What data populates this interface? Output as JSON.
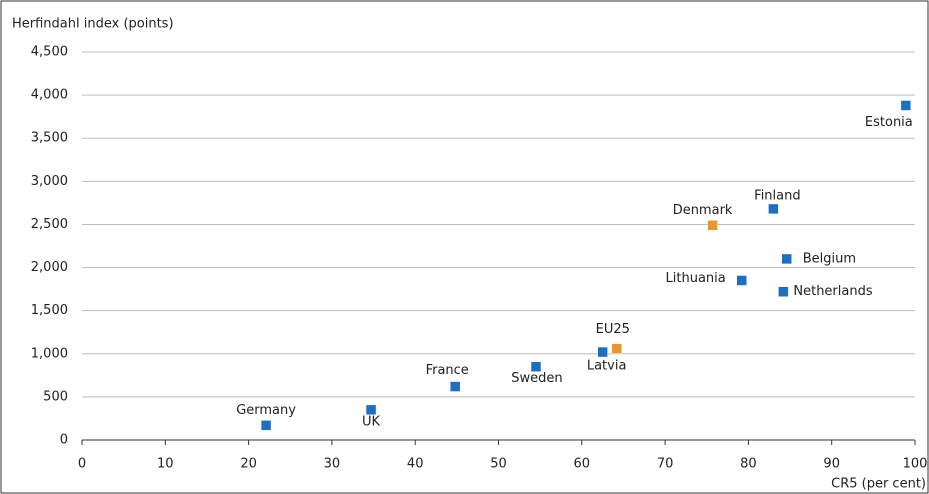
{
  "chart_data": {
    "type": "scatter",
    "y_label": "Herfindahl index (points)",
    "x_label": "CR5 (per cent)",
    "xlim": [
      0,
      100
    ],
    "xticks": [
      0,
      10,
      20,
      30,
      40,
      50,
      60,
      70,
      80,
      90,
      100
    ],
    "ylim": [
      0,
      4500
    ],
    "yticks": [
      0,
      500,
      {
        "value": 1000,
        "label": "1,000"
      },
      {
        "value": 1500,
        "label": "1,500"
      },
      {
        "value": 2000,
        "label": "2,000"
      },
      {
        "value": 2500,
        "label": "2,500"
      },
      {
        "value": 3000,
        "label": "3,000"
      },
      {
        "value": 3500,
        "label": "3,500"
      },
      {
        "value": 4000,
        "label": "4,000"
      },
      {
        "value": 4500,
        "label": "4,500"
      }
    ],
    "grid": true,
    "points": [
      {
        "label": "Germany",
        "x": 22.1,
        "y": 170,
        "color": "#1f6fc0"
      },
      {
        "label": "UK",
        "x": 34.7,
        "y": 350,
        "color": "#1f6fc0"
      },
      {
        "label": "France",
        "x": 44.8,
        "y": 620,
        "color": "#1f6fc0"
      },
      {
        "label": "Sweden",
        "x": 54.5,
        "y": 850,
        "color": "#1f6fc0"
      },
      {
        "label": "Latvia",
        "x": 62.5,
        "y": 1020,
        "color": "#1f6fc0"
      },
      {
        "label": "EU25",
        "x": 64.2,
        "y": 1060,
        "color": "#e8962e"
      },
      {
        "label": "Lithuania",
        "x": 79.2,
        "y": 1850,
        "color": "#1f6fc0"
      },
      {
        "label": "Netherlands",
        "x": 84.2,
        "y": 1720,
        "color": "#1f6fc0"
      },
      {
        "label": "Belgium",
        "x": 84.6,
        "y": 2100,
        "color": "#1f6fc0"
      },
      {
        "label": "Denmark",
        "x": 75.7,
        "y": 2490,
        "color": "#e8962e"
      },
      {
        "label": "Finland",
        "x": 83.0,
        "y": 2680,
        "color": "#1f6fc0"
      },
      {
        "label": "Estonia",
        "x": 98.9,
        "y": 3880,
        "color": "#1f6fc0"
      }
    ]
  }
}
